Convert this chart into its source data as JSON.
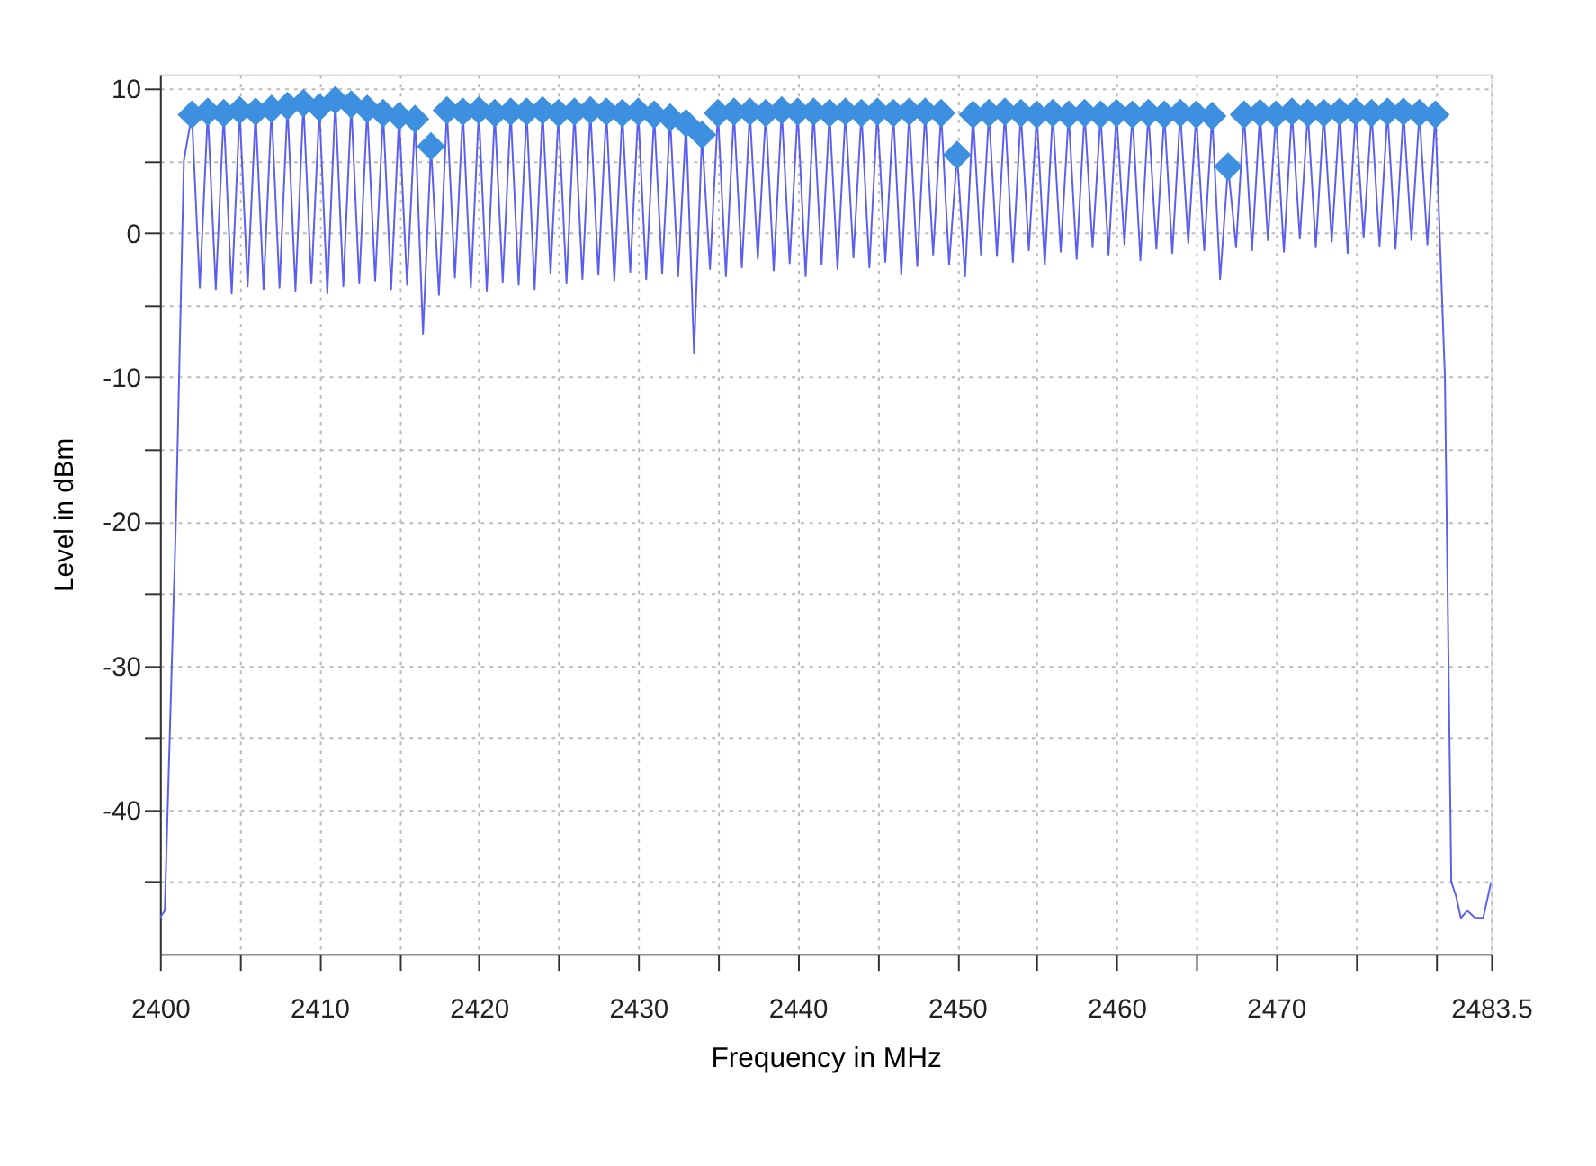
{
  "chart_data": {
    "type": "line",
    "xlabel": "Frequency in MHz",
    "ylabel": "Level in dBm",
    "xlim": [
      2400,
      2483.5
    ],
    "ylim": [
      -50,
      11
    ],
    "xticks": [
      2400,
      {
        "value": 2405,
        "label": null
      },
      2410,
      {
        "value": 2415,
        "label": null
      },
      2420,
      {
        "value": 2425,
        "label": null
      },
      2430,
      {
        "value": 2435,
        "label": null
      },
      2440,
      {
        "value": 2445,
        "label": null
      },
      2450,
      {
        "value": 2455,
        "label": null
      },
      2460,
      {
        "value": 2465,
        "label": null
      },
      2470,
      {
        "value": 2475,
        "label": null
      },
      {
        "value": 2480,
        "label": null
      },
      2483.5
    ],
    "yticks": [
      {
        "value": -45,
        "label": null
      },
      -40,
      {
        "value": -35,
        "label": null
      },
      -30,
      {
        "value": -25,
        "label": null
      },
      -20,
      {
        "value": -15,
        "label": null
      },
      -10,
      {
        "value": -5,
        "label": null
      },
      0,
      {
        "value": 5,
        "label": null
      },
      10
    ],
    "grid": true,
    "line_style": "solid",
    "series": [
      {
        "color": "#5b5ff0",
        "marker": "none",
        "x": [
          2400,
          2400.3,
          2401,
          2401.5,
          2402,
          2402.5,
          2403,
          2403.5,
          2404,
          2404.5,
          2405,
          2405.5,
          2406,
          2406.5,
          2407,
          2407.5,
          2408,
          2408.5,
          2409,
          2409.5,
          2410,
          2410.5,
          2411,
          2411.5,
          2412,
          2412.5,
          2413,
          2413.5,
          2414,
          2414.5,
          2415,
          2415.5,
          2416,
          2416.5,
          2417,
          2417.5,
          2418,
          2418.5,
          2419,
          2419.5,
          2420,
          2420.5,
          2421,
          2421.5,
          2422,
          2422.5,
          2423,
          2423.5,
          2424,
          2424.5,
          2425,
          2425.5,
          2426,
          2426.5,
          2427,
          2427.5,
          2428,
          2428.5,
          2429,
          2429.5,
          2430,
          2430.5,
          2431,
          2431.5,
          2432,
          2432.5,
          2433,
          2433.5,
          2434,
          2434.5,
          2435,
          2435.5,
          2436,
          2436.5,
          2437,
          2437.5,
          2438,
          2438.5,
          2439,
          2439.5,
          2440,
          2440.5,
          2441,
          2441.5,
          2442,
          2442.5,
          2443,
          2443.5,
          2444,
          2444.5,
          2445,
          2445.5,
          2446,
          2446.5,
          2447,
          2447.5,
          2448,
          2448.5,
          2449,
          2449.5,
          2450,
          2450.5,
          2451,
          2451.5,
          2452,
          2452.5,
          2453,
          2453.5,
          2454,
          2454.5,
          2455,
          2455.5,
          2456,
          2456.5,
          2457,
          2457.5,
          2458,
          2458.5,
          2459,
          2459.5,
          2460,
          2460.5,
          2461,
          2461.5,
          2462,
          2462.5,
          2463,
          2463.5,
          2464,
          2464.5,
          2465,
          2465.5,
          2466,
          2466.5,
          2467,
          2467.5,
          2468,
          2468.5,
          2469,
          2469.5,
          2470,
          2470.5,
          2471,
          2471.5,
          2472,
          2472.5,
          2473,
          2473.5,
          2474,
          2474.5,
          2475,
          2475.5,
          2476,
          2476.5,
          2477,
          2477.5,
          2478,
          2478.5,
          2479,
          2479.5,
          2480,
          2480.6,
          2481,
          2481.3,
          2481.6,
          2482,
          2482.5,
          2483,
          2483.5
        ],
        "values": [
          -47.5,
          -47,
          -20,
          5,
          8.2,
          -3.8,
          8.4,
          -3.9,
          8.3,
          -4.2,
          8.5,
          -3.7,
          8.4,
          -3.9,
          8.6,
          -3.8,
          8.8,
          -4.0,
          9.0,
          -3.5,
          8.7,
          -4.2,
          9.2,
          -3.7,
          8.9,
          -3.5,
          8.6,
          -3.3,
          8.3,
          -3.9,
          8.1,
          -3.6,
          7.9,
          -7.0,
          6.0,
          -4.3,
          8.5,
          -3.1,
          8.4,
          -3.8,
          8.5,
          -4.0,
          8.3,
          -3.4,
          8.4,
          -3.6,
          8.4,
          -3.9,
          8.5,
          -2.8,
          8.3,
          -3.5,
          8.4,
          -3.2,
          8.5,
          -2.9,
          8.4,
          -3.3,
          8.3,
          -2.7,
          8.4,
          -3.2,
          8.2,
          -2.8,
          8.0,
          -3.0,
          7.6,
          -8.3,
          6.8,
          -2.5,
          8.3,
          -3.0,
          8.4,
          -2.4,
          8.4,
          -1.8,
          8.3,
          -2.6,
          8.5,
          -2.1,
          8.4,
          -3.0,
          8.4,
          -2.2,
          8.3,
          -2.5,
          8.4,
          -1.7,
          8.3,
          -2.4,
          8.4,
          -2.0,
          8.3,
          -2.9,
          8.4,
          -2.3,
          8.4,
          -1.5,
          8.3,
          -2.2,
          5.4,
          -3.0,
          8.2,
          -1.5,
          8.3,
          -1.6,
          8.4,
          -2.0,
          8.3,
          -1.2,
          8.2,
          -2.2,
          8.3,
          -1.3,
          8.2,
          -1.8,
          8.3,
          -1.0,
          8.2,
          -1.5,
          8.3,
          -0.8,
          8.2,
          -1.9,
          8.3,
          -1.1,
          8.2,
          -1.4,
          8.3,
          -0.7,
          8.2,
          -1.2,
          8.1,
          -3.2,
          4.6,
          -1.0,
          8.2,
          -1.2,
          8.3,
          -0.5,
          8.2,
          -1.3,
          8.4,
          -0.4,
          8.3,
          -1.0,
          8.3,
          -0.6,
          8.4,
          -1.4,
          8.4,
          -0.3,
          8.3,
          -0.9,
          8.4,
          -1.1,
          8.4,
          -0.5,
          8.3,
          -0.8,
          8.2,
          -10,
          -45,
          -46,
          -47.5,
          -47,
          -47.5,
          -47.5,
          -45
        ]
      },
      {
        "type": "scatter",
        "color": "#3d8fe0",
        "marker": "diamond",
        "x": [
          2402,
          2403,
          2404,
          2405,
          2406,
          2407,
          2408,
          2409,
          2410,
          2411,
          2412,
          2413,
          2414,
          2415,
          2416,
          2417,
          2418,
          2419,
          2420,
          2421,
          2422,
          2423,
          2424,
          2425,
          2426,
          2427,
          2428,
          2429,
          2430,
          2431,
          2432,
          2433,
          2434,
          2435,
          2436,
          2437,
          2438,
          2439,
          2440,
          2441,
          2442,
          2443,
          2444,
          2445,
          2446,
          2447,
          2448,
          2449,
          2450,
          2451,
          2452,
          2453,
          2454,
          2455,
          2456,
          2457,
          2458,
          2459,
          2460,
          2461,
          2462,
          2463,
          2464,
          2465,
          2466,
          2467,
          2468,
          2469,
          2470,
          2471,
          2472,
          2473,
          2474,
          2475,
          2476,
          2477,
          2478,
          2479,
          2480
        ],
        "values": [
          8.2,
          8.4,
          8.3,
          8.5,
          8.4,
          8.6,
          8.8,
          9.0,
          8.7,
          9.2,
          8.9,
          8.6,
          8.3,
          8.1,
          7.9,
          6.0,
          8.5,
          8.4,
          8.5,
          8.3,
          8.4,
          8.4,
          8.5,
          8.3,
          8.4,
          8.5,
          8.4,
          8.3,
          8.4,
          8.2,
          8.0,
          7.6,
          6.8,
          8.3,
          8.4,
          8.4,
          8.3,
          8.5,
          8.4,
          8.4,
          8.3,
          8.4,
          8.3,
          8.4,
          8.3,
          8.4,
          8.4,
          8.3,
          5.4,
          8.2,
          8.3,
          8.4,
          8.3,
          8.2,
          8.3,
          8.2,
          8.3,
          8.2,
          8.3,
          8.2,
          8.3,
          8.2,
          8.3,
          8.2,
          8.1,
          4.6,
          8.2,
          8.3,
          8.2,
          8.4,
          8.3,
          8.3,
          8.4,
          8.4,
          8.3,
          8.4,
          8.4,
          8.3,
          8.2
        ]
      }
    ]
  }
}
